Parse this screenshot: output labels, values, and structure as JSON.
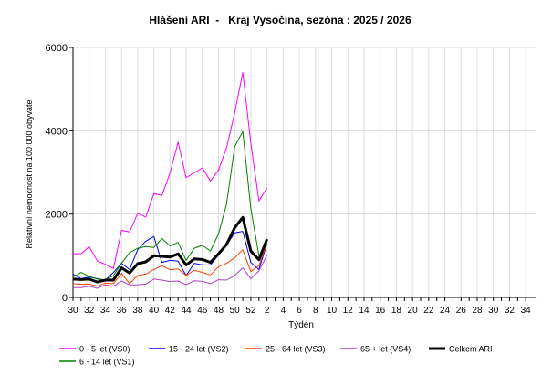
{
  "chart_data": {
    "type": "line",
    "title": "Hlášení ARI  -   Kraj Vysočina, sezóna : 2025 / 2026",
    "xlabel": "Týden",
    "ylabel": "Relativní nemocnost na 100 000 obyvatel",
    "ylim": [
      0,
      6000
    ],
    "yticks": [
      "0",
      "2000",
      "4000",
      "6000"
    ],
    "grid": true,
    "legend_placement": "bottom",
    "axis_weeks": [
      "30",
      "31",
      "32",
      "33",
      "34",
      "35",
      "36",
      "37",
      "38",
      "39",
      "40",
      "41",
      "42",
      "43",
      "44",
      "45",
      "46",
      "47",
      "48",
      "49",
      "50",
      "51",
      "52",
      "1",
      "2",
      "3",
      "4",
      "5",
      "6",
      "7",
      "8",
      "9",
      "10",
      "11",
      "12",
      "13",
      "14",
      "15",
      "16",
      "17",
      "18",
      "19",
      "20",
      "21",
      "22",
      "23",
      "24",
      "25",
      "26",
      "27",
      "28",
      "29",
      "30",
      "31",
      "32",
      "33",
      "34"
    ],
    "x": [
      "30",
      "31",
      "32",
      "33",
      "34",
      "35",
      "36",
      "37",
      "38",
      "39",
      "40",
      "41",
      "42",
      "43",
      "44",
      "45",
      "46",
      "47",
      "48",
      "49",
      "50",
      "51",
      "52",
      "1",
      "2"
    ],
    "series": [
      {
        "name": "0 - 5 let (VS0)",
        "color": "#ff00ff",
        "width": 1,
        "values": [
          1050,
          1050,
          1220,
          875,
          795,
          695,
          1610,
          1570,
          2020,
          1930,
          2490,
          2445,
          2985,
          3730,
          2875,
          2990,
          3110,
          2795,
          3060,
          3585,
          4430,
          5400,
          3700,
          2315,
          2630
        ]
      },
      {
        "name": "6 - 14 let (VS1)",
        "color": "#008000",
        "width": 1,
        "values": [
          490,
          600,
          505,
          440,
          415,
          525,
          820,
          1075,
          1180,
          1220,
          1200,
          1415,
          1235,
          1320,
          890,
          1180,
          1250,
          1115,
          1525,
          2240,
          3615,
          3980,
          2130,
          1000,
          1290
        ]
      },
      {
        "name": "15 - 24 let (VS2)",
        "color": "#0000ff",
        "width": 1,
        "values": [
          560,
          450,
          490,
          450,
          415,
          600,
          820,
          670,
          1145,
          1350,
          1460,
          840,
          890,
          870,
          525,
          820,
          780,
          780,
          1015,
          1255,
          1550,
          1585,
          840,
          670,
          1290
        ]
      },
      {
        "name": "25 - 64 let (VS3)",
        "color": "#ff4000",
        "width": 1,
        "values": [
          330,
          315,
          320,
          270,
          345,
          330,
          575,
          330,
          525,
          560,
          670,
          760,
          665,
          685,
          525,
          655,
          600,
          540,
          735,
          820,
          950,
          1145,
          620,
          765,
          1305
        ]
      },
      {
        "name": "65 + let (VS4)",
        "color": "#b040c0",
        "width": 1,
        "values": [
          235,
          235,
          270,
          220,
          305,
          270,
          395,
          300,
          305,
          320,
          440,
          415,
          380,
          395,
          305,
          400,
          385,
          330,
          425,
          415,
          525,
          710,
          450,
          635,
          1015
        ]
      },
      {
        "name": "Celkem ARI",
        "color": "#000000",
        "width": 3,
        "values": [
          440,
          430,
          440,
          370,
          415,
          415,
          710,
          585,
          810,
          855,
          1000,
          985,
          970,
          1045,
          780,
          925,
          910,
          840,
          1050,
          1270,
          1670,
          1920,
          1115,
          905,
          1400
        ]
      }
    ],
    "legend_order": [
      0,
      2,
      3,
      4,
      5,
      1
    ]
  }
}
